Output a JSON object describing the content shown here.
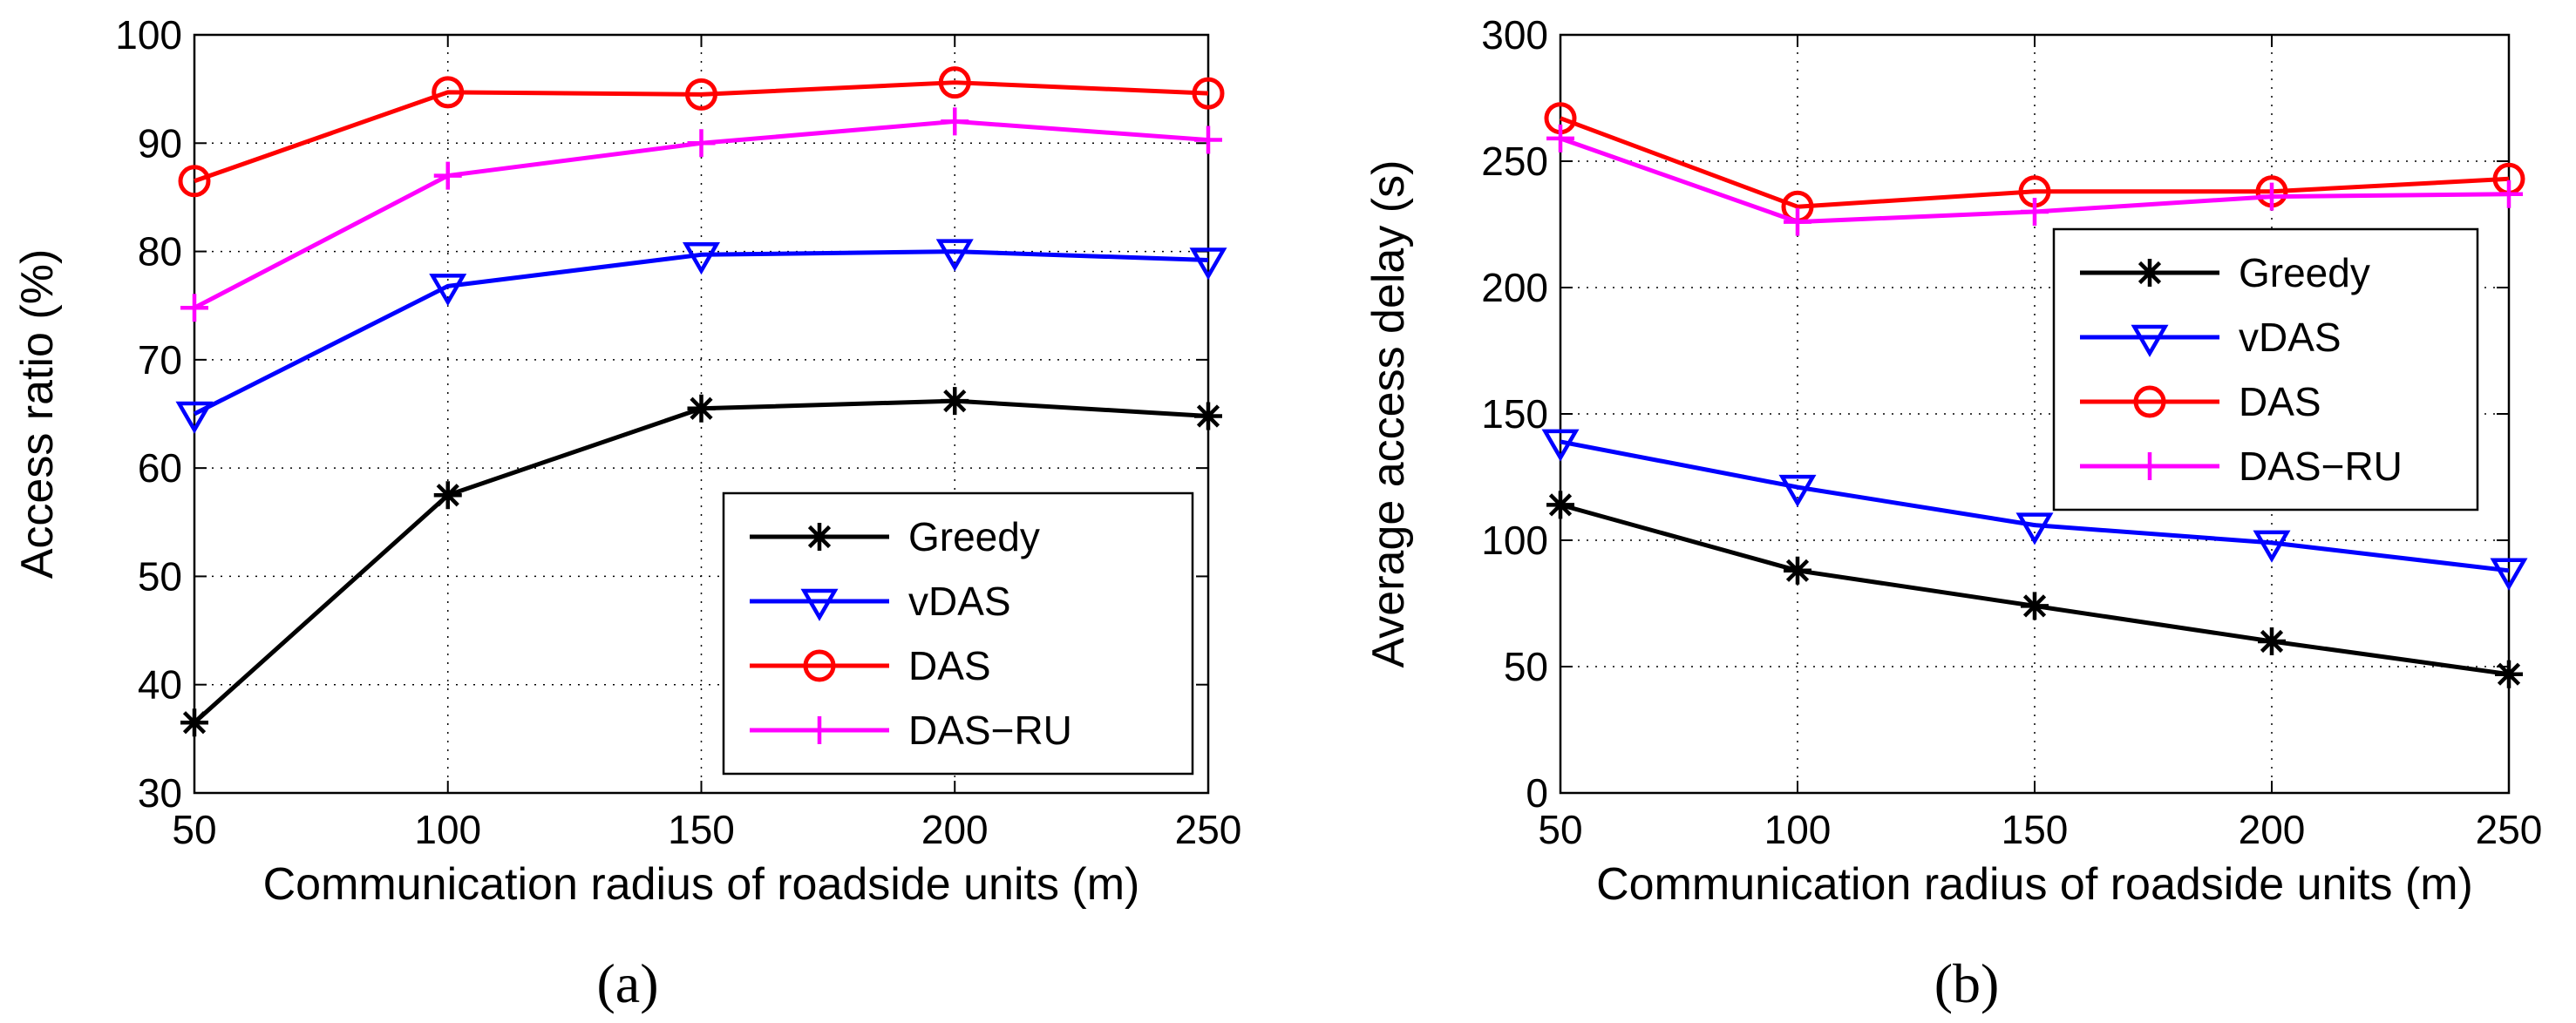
{
  "chart_data": [
    {
      "type": "line",
      "panel_label": "(a)",
      "xlabel": "Communication radius of roadside units (m)",
      "ylabel": "Access ratio (%)",
      "x": [
        50,
        100,
        150,
        200,
        250
      ],
      "xlim": [
        50,
        250
      ],
      "ylim": [
        30,
        100
      ],
      "xticks": [
        50,
        100,
        150,
        200,
        250
      ],
      "yticks": [
        30,
        40,
        50,
        60,
        70,
        80,
        90,
        100
      ],
      "grid": true,
      "legend_position": "bottom-right",
      "series": [
        {
          "name": "Greedy",
          "color": "#000000",
          "marker": "asterisk",
          "values": [
            36.5,
            57.5,
            65.5,
            66.2,
            64.8
          ]
        },
        {
          "name": "vDAS",
          "color": "#0000ff",
          "marker": "triangle-down",
          "values": [
            65.0,
            76.8,
            79.7,
            80.0,
            79.2
          ]
        },
        {
          "name": "DAS",
          "color": "#ff0000",
          "marker": "circle",
          "values": [
            86.5,
            94.7,
            94.5,
            95.6,
            94.6
          ]
        },
        {
          "name": "DAS−RU",
          "color": "#ff00ff",
          "marker": "plus",
          "values": [
            74.8,
            87.0,
            90.0,
            92.0,
            90.3
          ]
        }
      ]
    },
    {
      "type": "line",
      "panel_label": "(b)",
      "xlabel": "Communication radius of roadside units (m)",
      "ylabel": "Average access delay (s)",
      "x": [
        50,
        100,
        150,
        200,
        250
      ],
      "xlim": [
        50,
        250
      ],
      "ylim": [
        0,
        300
      ],
      "xticks": [
        50,
        100,
        150,
        200,
        250
      ],
      "yticks": [
        0,
        50,
        100,
        150,
        200,
        250,
        300
      ],
      "grid": true,
      "legend_position": "top-right",
      "series": [
        {
          "name": "Greedy",
          "color": "#000000",
          "marker": "asterisk",
          "values": [
            114,
            88,
            74,
            60,
            47
          ]
        },
        {
          "name": "vDAS",
          "color": "#0000ff",
          "marker": "triangle-down",
          "values": [
            139,
            121,
            106,
            99,
            88
          ]
        },
        {
          "name": "DAS",
          "color": "#ff0000",
          "marker": "circle",
          "values": [
            267,
            232,
            238,
            238,
            243
          ]
        },
        {
          "name": "DAS−RU",
          "color": "#ff00ff",
          "marker": "plus",
          "values": [
            259,
            226,
            230,
            236,
            237
          ]
        }
      ]
    }
  ]
}
